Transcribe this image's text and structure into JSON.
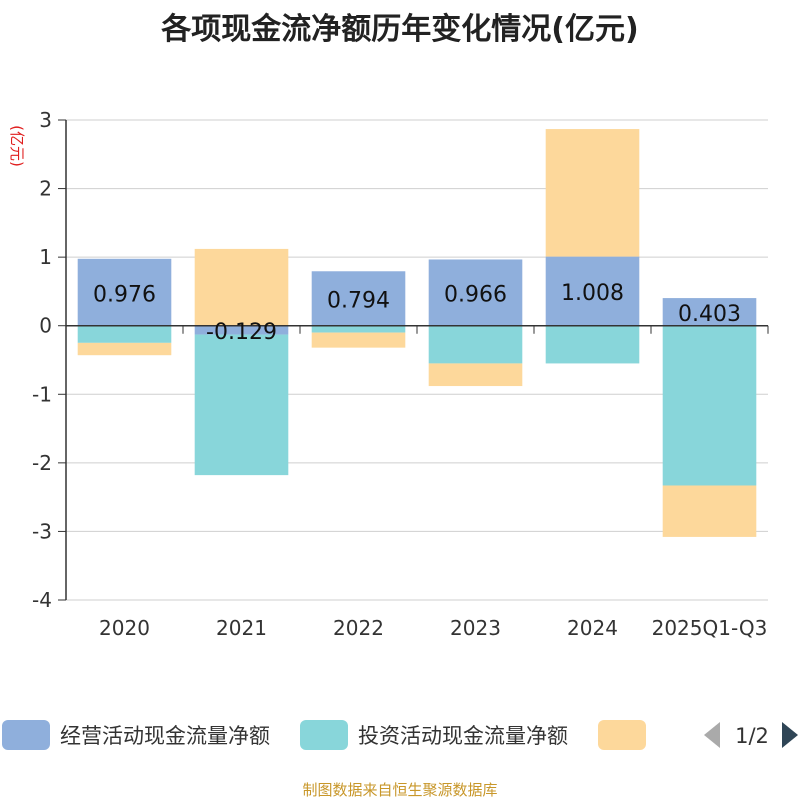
{
  "chart_data": {
    "type": "bar",
    "stacked": true,
    "title": "各项现金流净额历年变化情况(亿元)",
    "ylabel": "(亿元)",
    "ylim": [
      -4,
      3
    ],
    "yticks": [
      3,
      2,
      1,
      0,
      -1,
      -2,
      -3,
      -4
    ],
    "categories": [
      "2020",
      "2021",
      "2022",
      "2023",
      "2024",
      "2025Q1-Q3"
    ],
    "series": [
      {
        "name": "经营活动现金流量净额",
        "color": "#8fafdc",
        "values": [
          0.976,
          -0.129,
          0.794,
          0.966,
          1.008,
          0.403
        ],
        "labels": [
          "0.976",
          "-0.129",
          "0.794",
          "0.966",
          "1.008",
          "0.403"
        ]
      },
      {
        "name": "投资活动现金流量净额",
        "color": "#88d6da",
        "values": [
          -0.25,
          -2.05,
          -0.1,
          -0.55,
          -0.55,
          -2.33
        ]
      },
      {
        "name": "",
        "color": "#fdd89b",
        "values": [
          -0.18,
          1.12,
          -0.22,
          -0.33,
          1.86,
          -0.75
        ]
      }
    ],
    "legend_position": "bottom",
    "legend_page": "1/2"
  },
  "footer": {
    "source": "制图数据来自恒生聚源数据库"
  }
}
